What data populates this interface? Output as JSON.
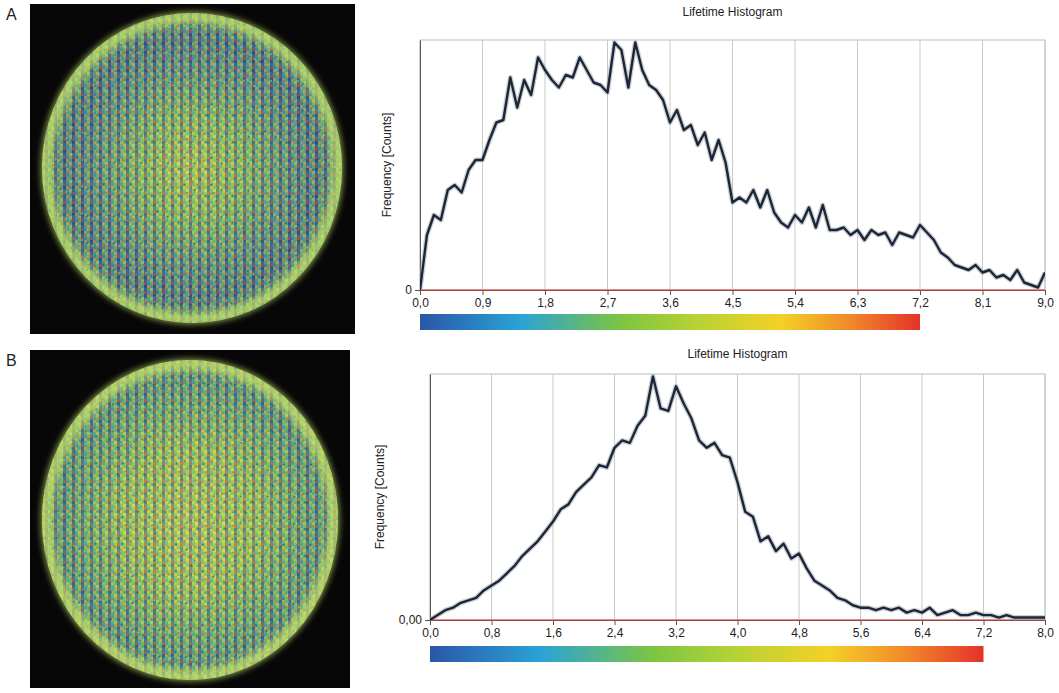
{
  "chart_data": [
    {
      "type": "line",
      "panel_label": "A",
      "title": "Lifetime Histogram",
      "y_label": "Frequency [Counts]",
      "color": "#1c2636",
      "grid": true,
      "colorbar": [
        0,
        7.2
      ],
      "x": [
        0,
        0.1,
        0.2,
        0.3,
        0.4,
        0.5,
        0.6,
        0.7,
        0.8,
        0.9,
        1.0,
        1.1,
        1.2,
        1.3,
        1.4,
        1.5,
        1.6,
        1.7,
        1.8,
        1.9,
        2.0,
        2.1,
        2.2,
        2.3,
        2.4,
        2.5,
        2.6,
        2.7,
        2.8,
        2.9,
        3.0,
        3.1,
        3.2,
        3.3,
        3.4,
        3.5,
        3.6,
        3.7,
        3.8,
        3.9,
        4.0,
        4.1,
        4.2,
        4.3,
        4.4,
        4.5,
        4.6,
        4.7,
        4.8,
        4.9,
        5.0,
        5.1,
        5.2,
        5.3,
        5.4,
        5.5,
        5.6,
        5.7,
        5.8,
        5.9,
        6.0,
        6.1,
        6.2,
        6.3,
        6.4,
        6.5,
        6.6,
        6.7,
        6.8,
        6.9,
        7.0,
        7.1,
        7.2,
        7.3,
        7.4,
        7.5,
        7.6,
        7.7,
        7.8,
        7.9,
        8.0,
        8.1,
        8.2,
        8.3,
        8.4,
        8.5,
        8.6,
        8.7,
        8.8,
        8.9,
        9.0
      ],
      "values": [
        0,
        22,
        30,
        28,
        40,
        42,
        39,
        48,
        52,
        52,
        60,
        67,
        68,
        85,
        73,
        84,
        78,
        93,
        88,
        84,
        81,
        86,
        85,
        93,
        88,
        83,
        82,
        79,
        99,
        96,
        81,
        99,
        88,
        82,
        80,
        76,
        67,
        72,
        64,
        66,
        58,
        63,
        52,
        60,
        51,
        35,
        37,
        35,
        40,
        33,
        40,
        31,
        27,
        25,
        30,
        27,
        33,
        25,
        34,
        24,
        24,
        25,
        22,
        24,
        20,
        24,
        22,
        23,
        18,
        23,
        22,
        21,
        26,
        23,
        20,
        15,
        13,
        10,
        9,
        8,
        10,
        7,
        8,
        5,
        6,
        4,
        8,
        3,
        2,
        1,
        7
      ],
      "xlim": [
        0,
        9.0
      ],
      "xticks": [
        {
          "value": 0,
          "label": "0,0"
        },
        {
          "value": 0.9,
          "label": "0,9"
        },
        {
          "value": 1.8,
          "label": "1,8"
        },
        {
          "value": 2.7,
          "label": "2,7"
        },
        {
          "value": 3.6,
          "label": "3,6"
        },
        {
          "value": 4.5,
          "label": "4,5"
        },
        {
          "value": 5.4,
          "label": "5,4"
        },
        {
          "value": 6.3,
          "label": "6,3"
        },
        {
          "value": 7.2,
          "label": "7,2"
        },
        {
          "value": 8.1,
          "label": "8,1"
        },
        {
          "value": 9.0,
          "label": "9,0"
        }
      ],
      "ylim": [
        0,
        100
      ],
      "yticks": [
        0
      ]
    },
    {
      "type": "line",
      "panel_label": "B",
      "title": "Lifetime Histogram",
      "y_label": "Frequency [Counts]",
      "color": "#1c2636",
      "grid": true,
      "colorbar": [
        0,
        7.2
      ],
      "x": [
        0,
        0.1,
        0.2,
        0.3,
        0.4,
        0.5,
        0.6,
        0.7,
        0.8,
        0.9,
        1.0,
        1.1,
        1.2,
        1.3,
        1.4,
        1.5,
        1.6,
        1.7,
        1.8,
        1.9,
        2.0,
        2.1,
        2.2,
        2.3,
        2.4,
        2.5,
        2.6,
        2.7,
        2.8,
        2.9,
        3.0,
        3.1,
        3.2,
        3.3,
        3.4,
        3.5,
        3.6,
        3.7,
        3.8,
        3.9,
        4.0,
        4.1,
        4.2,
        4.3,
        4.4,
        4.5,
        4.6,
        4.7,
        4.8,
        4.9,
        5.0,
        5.1,
        5.2,
        5.3,
        5.4,
        5.5,
        5.6,
        5.7,
        5.8,
        5.9,
        6.0,
        6.1,
        6.2,
        6.3,
        6.4,
        6.5,
        6.6,
        6.7,
        6.8,
        6.9,
        7.0,
        7.1,
        7.2,
        7.3,
        7.4,
        7.5,
        7.6,
        7.7,
        7.8,
        7.9,
        8.0
      ],
      "values": [
        0,
        2,
        4,
        5,
        7,
        8,
        9,
        12,
        14,
        16,
        19,
        22,
        26,
        29,
        32,
        36,
        40,
        45,
        47,
        52,
        55,
        58,
        63,
        62,
        70,
        73,
        72,
        79,
        83,
        99,
        86,
        85,
        95,
        88,
        82,
        73,
        70,
        72,
        67,
        66,
        56,
        44,
        42,
        32,
        34,
        28,
        31,
        25,
        27,
        21,
        16,
        14,
        12,
        9,
        8,
        6,
        5,
        5,
        4,
        5,
        4,
        5,
        3,
        4,
        3,
        5,
        2,
        3,
        4,
        2,
        2,
        3,
        2,
        2,
        1,
        2,
        1,
        1,
        1,
        1,
        1
      ],
      "xlim": [
        0,
        8.0
      ],
      "xticks": [
        {
          "value": 0,
          "label": "0,0"
        },
        {
          "value": 0.8,
          "label": "0,8"
        },
        {
          "value": 1.6,
          "label": "1,6"
        },
        {
          "value": 2.4,
          "label": "2,4"
        },
        {
          "value": 3.2,
          "label": "3,2"
        },
        {
          "value": 4.0,
          "label": "4,0"
        },
        {
          "value": 4.8,
          "label": "4,8"
        },
        {
          "value": 5.6,
          "label": "5,6"
        },
        {
          "value": 6.4,
          "label": "6,4"
        },
        {
          "value": 7.2,
          "label": "7,2"
        },
        {
          "value": 8.0,
          "label": "8,0"
        }
      ],
      "ylim": [
        0,
        100
      ],
      "yticks": [
        {
          "value": 0,
          "label": "0,00"
        }
      ]
    }
  ]
}
